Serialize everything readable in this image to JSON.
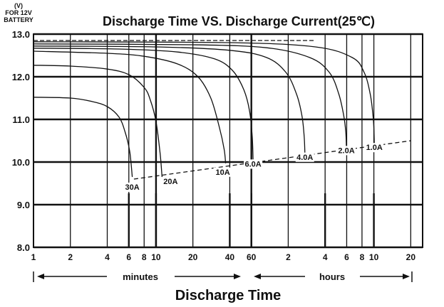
{
  "chart_data": {
    "type": "line",
    "title": "Discharge Time VS. Discharge Current(25℃)",
    "y_unit_label": "(V)",
    "y_caption_line1": "FOR 12V",
    "y_caption_line2": "BATTERY",
    "xlabel": "Discharge Time",
    "minutes_label": "minutes",
    "hours_label": "hours",
    "ylim": [
      8.0,
      13.0
    ],
    "y_ticks": [
      {
        "value": 8.0,
        "label": "8.0"
      },
      {
        "value": 9.0,
        "label": "9.0"
      },
      {
        "value": 10.0,
        "label": "10.0"
      },
      {
        "value": 11.0,
        "label": "11.0"
      },
      {
        "value": 12.0,
        "label": "12.0"
      },
      {
        "value": 13.0,
        "label": "13.0"
      }
    ],
    "x_scale": "log",
    "x_unit": "minutes",
    "xlim_minutes": [
      1,
      1500
    ],
    "x_ticks": [
      {
        "minutes": 1,
        "label": "1"
      },
      {
        "minutes": 2,
        "label": "2"
      },
      {
        "minutes": 4,
        "label": "4"
      },
      {
        "minutes": 6,
        "label": "6"
      },
      {
        "minutes": 8,
        "label": "8"
      },
      {
        "minutes": 10,
        "label": "10"
      },
      {
        "minutes": 20,
        "label": "20"
      },
      {
        "minutes": 40,
        "label": "40"
      },
      {
        "minutes": 60,
        "label": "60"
      },
      {
        "minutes": 120,
        "label": "2"
      },
      {
        "minutes": 240,
        "label": "4"
      },
      {
        "minutes": 360,
        "label": "6"
      },
      {
        "minutes": 480,
        "label": "8"
      },
      {
        "minutes": 600,
        "label": "10"
      },
      {
        "minutes": 1200,
        "label": "20"
      }
    ],
    "series": [
      {
        "name": "30A",
        "points": [
          [
            1,
            11.52
          ],
          [
            2,
            11.5
          ],
          [
            3,
            11.42
          ],
          [
            4,
            11.3
          ],
          [
            5,
            11.05
          ],
          [
            5.6,
            10.7
          ],
          [
            6.1,
            10.25
          ],
          [
            6.4,
            9.65
          ]
        ]
      },
      {
        "name": "20A",
        "points": [
          [
            1,
            12.27
          ],
          [
            2,
            12.25
          ],
          [
            4,
            12.18
          ],
          [
            6,
            12.05
          ],
          [
            8,
            11.75
          ],
          [
            9,
            11.45
          ],
          [
            10,
            10.95
          ],
          [
            10.8,
            10.2
          ],
          [
            11.2,
            9.65
          ]
        ]
      },
      {
        "name": "10A",
        "points": [
          [
            1,
            12.6
          ],
          [
            4,
            12.55
          ],
          [
            8,
            12.48
          ],
          [
            15,
            12.3
          ],
          [
            22,
            12.0
          ],
          [
            28,
            11.5
          ],
          [
            33,
            10.8
          ],
          [
            36,
            10.3
          ],
          [
            37,
            9.97
          ]
        ]
      },
      {
        "name": "6.0A",
        "points": [
          [
            1,
            12.67
          ],
          [
            5,
            12.65
          ],
          [
            15,
            12.58
          ],
          [
            30,
            12.42
          ],
          [
            42,
            12.15
          ],
          [
            52,
            11.7
          ],
          [
            58,
            11.2
          ],
          [
            61,
            10.6
          ],
          [
            62,
            10.06
          ]
        ]
      },
      {
        "name": "4.0A",
        "points": [
          [
            1,
            12.72
          ],
          [
            10,
            12.7
          ],
          [
            40,
            12.62
          ],
          [
            80,
            12.45
          ],
          [
            115,
            12.1
          ],
          [
            140,
            11.6
          ],
          [
            155,
            11.1
          ],
          [
            162,
            10.6
          ],
          [
            164,
            10.22
          ]
        ]
      },
      {
        "name": "2.0A",
        "points": [
          [
            1,
            12.77
          ],
          [
            20,
            12.75
          ],
          [
            80,
            12.68
          ],
          [
            180,
            12.45
          ],
          [
            260,
            12.1
          ],
          [
            310,
            11.6
          ],
          [
            340,
            11.1
          ],
          [
            354,
            10.7
          ],
          [
            358,
            10.36
          ]
        ]
      },
      {
        "name": "1.0A",
        "points": [
          [
            1,
            12.82
          ],
          [
            40,
            12.8
          ],
          [
            200,
            12.7
          ],
          [
            400,
            12.45
          ],
          [
            500,
            12.1
          ],
          [
            560,
            11.6
          ],
          [
            590,
            11.1
          ],
          [
            600,
            10.8
          ],
          [
            605,
            10.43
          ]
        ]
      }
    ],
    "label_ticks_minutes": [
      6,
      10,
      40,
      60,
      240,
      600
    ],
    "end_voltage_line": {
      "style": "dashed",
      "from": {
        "minutes": 6.6,
        "volts": 9.6
      },
      "to": {
        "minutes": 1200,
        "volts": 10.5
      }
    },
    "top_reference_line": {
      "style": "dashed",
      "volts": 12.85
    }
  }
}
